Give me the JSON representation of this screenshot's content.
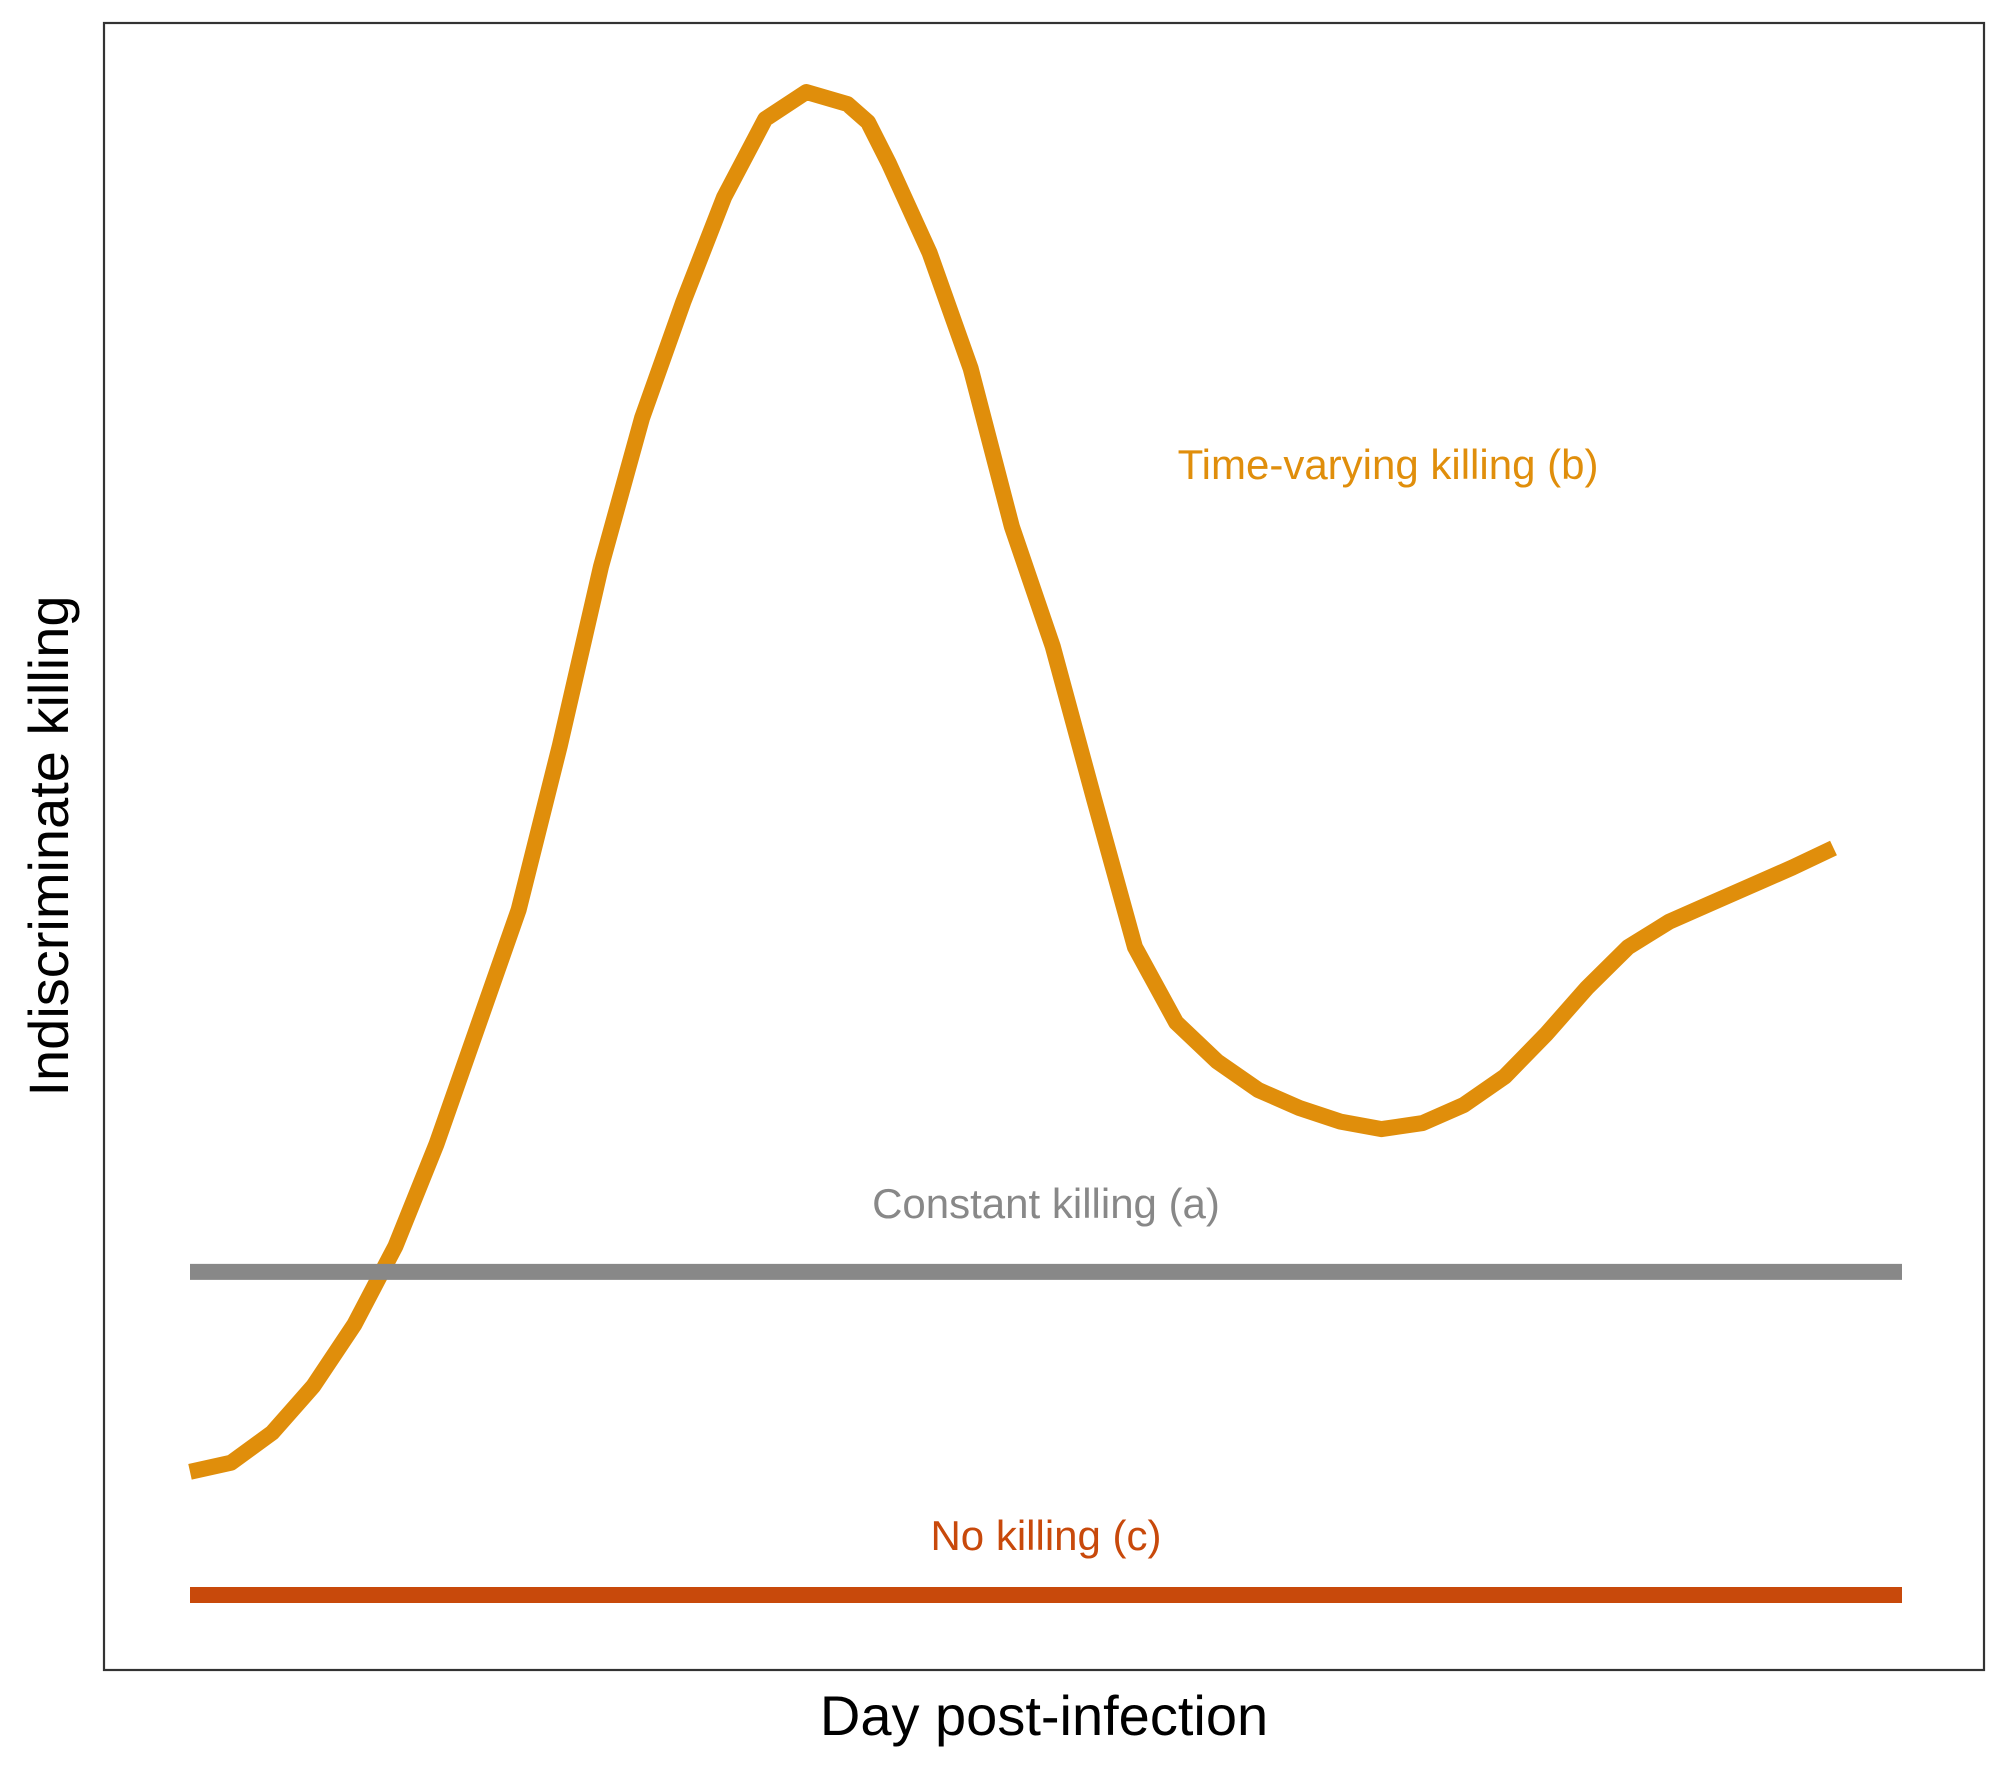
{
  "chart_data": {
    "type": "line",
    "title": "",
    "xlabel": "Day post-infection",
    "ylabel": "Indiscriminate killing",
    "xlim": [
      0,
      100
    ],
    "ylim": [
      0,
      100
    ],
    "x_ticks_shown": false,
    "y_ticks_shown": false,
    "grid": false,
    "legend": "none",
    "series": [
      {
        "name": "Time-varying killing (b)",
        "color": "#E08E0B",
        "x": [
          0,
          2.4,
          4.8,
          7.2,
          9.6,
          12,
          14.4,
          16.8,
          19.2,
          21.6,
          24,
          26.4,
          28.8,
          31.2,
          33.6,
          36,
          38.4,
          39.6,
          40.8,
          43.2,
          45.6,
          48,
          50.4,
          52.8,
          55.2,
          57.6,
          60,
          62.4,
          64.8,
          67.2,
          69.6,
          72,
          74.4,
          76.8,
          79.2,
          81.6,
          84,
          86.4,
          88.8,
          91.2,
          93.6,
          96
        ],
        "y": [
          8.2,
          8.8,
          10.8,
          13.9,
          18.0,
          23.2,
          30.0,
          37.8,
          45.6,
          56.5,
          68.4,
          78.3,
          86.0,
          93.0,
          98.2,
          100,
          99.2,
          98.0,
          95.3,
          89.3,
          81.6,
          71.1,
          63.1,
          53.0,
          43.1,
          38.1,
          35.5,
          33.6,
          32.4,
          31.5,
          31.0,
          31.4,
          32.6,
          34.5,
          37.3,
          40.4,
          43.1,
          44.8,
          46.0,
          47.2,
          48.4,
          49.7
        ],
        "label": "Time-varying killing (b)"
      },
      {
        "name": "Constant killing (a)",
        "color": "#888888",
        "x": [
          0,
          100
        ],
        "y": [
          21.5,
          21.5
        ],
        "label": "Constant killing (a)"
      },
      {
        "name": "No killing (c)",
        "color": "#C8490B",
        "x": [
          0,
          100
        ],
        "y": [
          0,
          0
        ],
        "label": "No killing (c)"
      }
    ]
  }
}
